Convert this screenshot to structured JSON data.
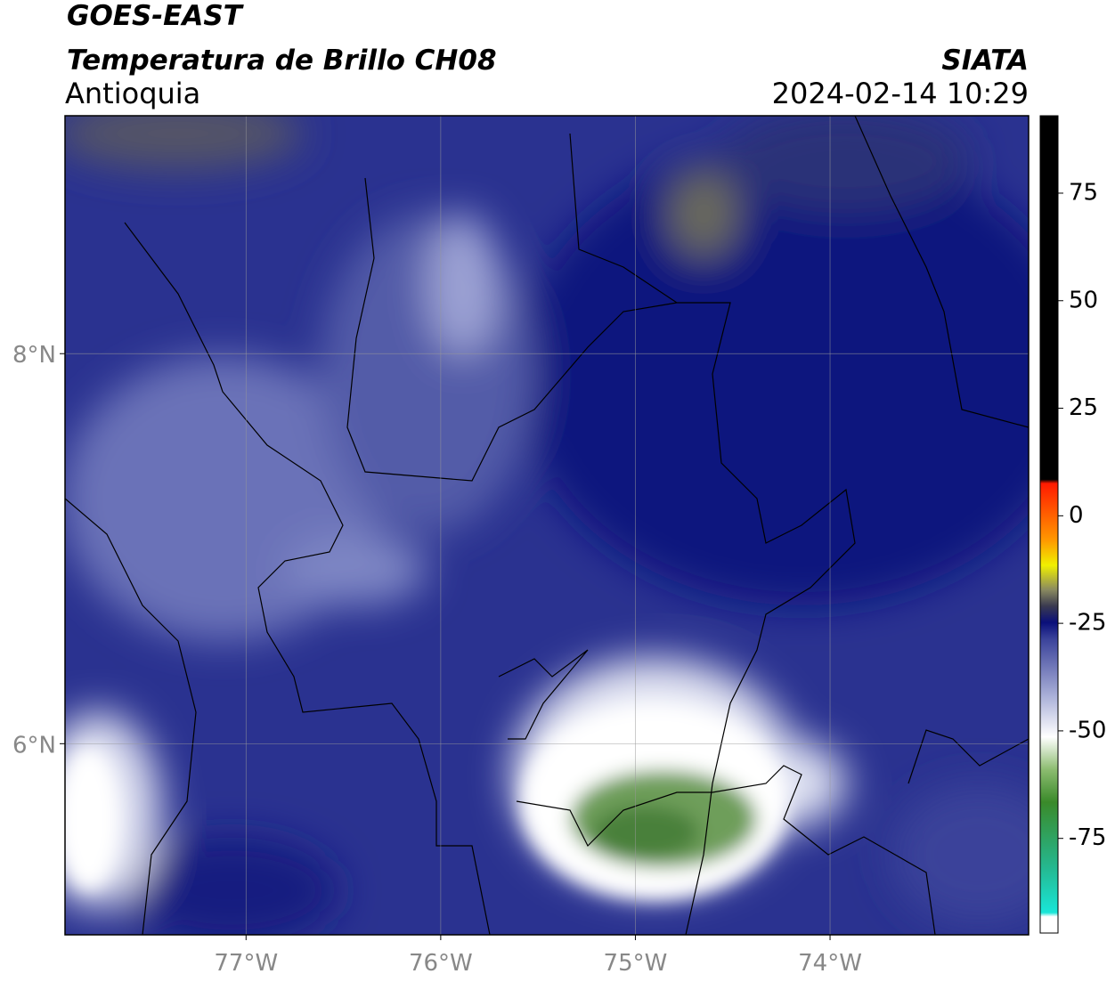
{
  "header": {
    "title": "GOES-EAST",
    "subtitle": "Temperatura de Brillo CH08",
    "region": "Antioquia",
    "source": "SIATA",
    "timestamp": "2024-02-14 10:29"
  },
  "map": {
    "xlim": [
      -77.93,
      -72.98
    ],
    "ylim": [
      5.02,
      9.22
    ],
    "xticks": [
      {
        "value": -77,
        "label": "77°W"
      },
      {
        "value": -76,
        "label": "76°W"
      },
      {
        "value": -75,
        "label": "75°W"
      },
      {
        "value": -74,
        "label": "74°W"
      }
    ],
    "yticks": [
      {
        "value": 8,
        "label": "8°N"
      },
      {
        "value": 6,
        "label": "6°N"
      }
    ],
    "grid": true
  },
  "colorbar": {
    "lim": [
      -97,
      93
    ],
    "ticks": [
      75,
      50,
      25,
      0,
      -25,
      -50,
      -75
    ]
  }
}
